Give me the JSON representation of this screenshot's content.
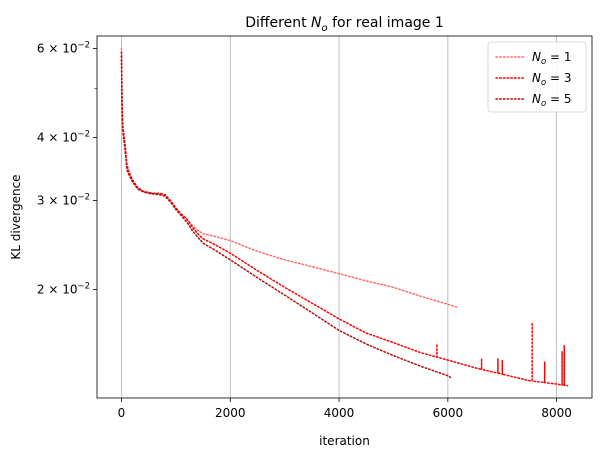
{
  "chart_data": {
    "type": "line",
    "title_prefix": "Different ",
    "title_var": "N",
    "title_sub": "o",
    "title_suffix": " for real image 1",
    "xlabel": "iteration",
    "ylabel": "KL divergence",
    "yscale": "log",
    "xlim": [
      -450,
      8650
    ],
    "ylim": [
      0.0122,
      0.0635
    ],
    "x_ticks": [
      {
        "value": 0,
        "label": "0"
      },
      {
        "value": 2000,
        "label": "2000"
      },
      {
        "value": 4000,
        "label": "4000"
      },
      {
        "value": 6000,
        "label": "6000"
      },
      {
        "value": 8000,
        "label": "8000"
      }
    ],
    "y_ticks": [
      {
        "value": 0.02,
        "mantissa": "2",
        "base": "10",
        "exp": "−2"
      },
      {
        "value": 0.03,
        "mantissa": "3",
        "base": "10",
        "exp": "−2"
      },
      {
        "value": 0.04,
        "mantissa": "4",
        "base": "10",
        "exp": "−2"
      },
      {
        "value": 0.06,
        "mantissa": "6",
        "base": "10",
        "exp": "−2"
      }
    ],
    "y_minor_ticks": [
      0.05
    ],
    "grid": "x-major",
    "legend_position": "top-right",
    "series": [
      {
        "name": "N_o = 1",
        "legend_var": "N",
        "legend_sub": "o",
        "legend_rhs": " = 1",
        "color": "#ff6b6b",
        "points": [
          [
            0,
            0.06
          ],
          [
            10,
            0.048
          ],
          [
            25,
            0.042
          ],
          [
            50,
            0.04
          ],
          [
            80,
            0.038
          ],
          [
            100,
            0.0355
          ],
          [
            150,
            0.034
          ],
          [
            200,
            0.033
          ],
          [
            300,
            0.0318
          ],
          [
            400,
            0.0313
          ],
          [
            500,
            0.0311
          ],
          [
            600,
            0.031
          ],
          [
            700,
            0.031
          ],
          [
            800,
            0.0308
          ],
          [
            900,
            0.03
          ],
          [
            1000,
            0.029
          ],
          [
            1100,
            0.0282
          ],
          [
            1200,
            0.0276
          ],
          [
            1300,
            0.0268
          ],
          [
            1400,
            0.0262
          ],
          [
            1500,
            0.0258
          ],
          [
            1700,
            0.0255
          ],
          [
            2000,
            0.025
          ],
          [
            2500,
            0.0238
          ],
          [
            3000,
            0.0229
          ],
          [
            3500,
            0.0222
          ],
          [
            4000,
            0.0215
          ],
          [
            4500,
            0.0208
          ],
          [
            5000,
            0.0202
          ],
          [
            5500,
            0.0194
          ],
          [
            6000,
            0.0187
          ],
          [
            6200,
            0.0184
          ]
        ],
        "spikes": []
      },
      {
        "name": "N_o = 3",
        "legend_var": "N",
        "legend_sub": "o",
        "legend_rhs": " = 3",
        "color": "#ff0000",
        "points": [
          [
            0,
            0.059
          ],
          [
            10,
            0.047
          ],
          [
            25,
            0.042
          ],
          [
            50,
            0.04
          ],
          [
            80,
            0.037
          ],
          [
            100,
            0.035
          ],
          [
            150,
            0.0338
          ],
          [
            200,
            0.033
          ],
          [
            300,
            0.0318
          ],
          [
            400,
            0.0313
          ],
          [
            500,
            0.0311
          ],
          [
            600,
            0.031
          ],
          [
            700,
            0.031
          ],
          [
            800,
            0.0308
          ],
          [
            900,
            0.03
          ],
          [
            1000,
            0.029
          ],
          [
            1100,
            0.0282
          ],
          [
            1200,
            0.0276
          ],
          [
            1300,
            0.0266
          ],
          [
            1400,
            0.0258
          ],
          [
            1500,
            0.0252
          ],
          [
            1700,
            0.0246
          ],
          [
            2000,
            0.0236
          ],
          [
            2500,
            0.0218
          ],
          [
            3000,
            0.0202
          ],
          [
            3500,
            0.0188
          ],
          [
            4000,
            0.0175
          ],
          [
            4500,
            0.0164
          ],
          [
            5000,
            0.0157
          ],
          [
            5500,
            0.015
          ],
          [
            6000,
            0.0145
          ],
          [
            6500,
            0.014
          ],
          [
            7000,
            0.0136
          ],
          [
            7500,
            0.0132
          ],
          [
            8000,
            0.013
          ],
          [
            8200,
            0.0129
          ]
        ],
        "spikes": [
          [
            5800,
            0.0156
          ],
          [
            6620,
            0.0146
          ],
          [
            6920,
            0.0146
          ],
          [
            7000,
            0.0145
          ],
          [
            7550,
            0.0172
          ],
          [
            7780,
            0.0144
          ],
          [
            8100,
            0.0151
          ],
          [
            8140,
            0.0155
          ]
        ]
      },
      {
        "name": "N_o = 5",
        "legend_var": "N",
        "legend_sub": "o",
        "legend_rhs": " = 5",
        "color": "#b01010",
        "points": [
          [
            0,
            0.058
          ],
          [
            10,
            0.046
          ],
          [
            25,
            0.041
          ],
          [
            50,
            0.039
          ],
          [
            80,
            0.0365
          ],
          [
            100,
            0.0345
          ],
          [
            150,
            0.0335
          ],
          [
            200,
            0.0327
          ],
          [
            300,
            0.0316
          ],
          [
            400,
            0.0312
          ],
          [
            500,
            0.031
          ],
          [
            600,
            0.0309
          ],
          [
            700,
            0.0308
          ],
          [
            800,
            0.0306
          ],
          [
            900,
            0.0298
          ],
          [
            1000,
            0.0288
          ],
          [
            1100,
            0.028
          ],
          [
            1200,
            0.0272
          ],
          [
            1300,
            0.0262
          ],
          [
            1400,
            0.0254
          ],
          [
            1500,
            0.0247
          ],
          [
            1700,
            0.024
          ],
          [
            2000,
            0.0229
          ],
          [
            2500,
            0.0211
          ],
          [
            3000,
            0.0195
          ],
          [
            3500,
            0.018
          ],
          [
            4000,
            0.0166
          ],
          [
            4500,
            0.0156
          ],
          [
            5000,
            0.0148
          ],
          [
            5500,
            0.0141
          ],
          [
            6000,
            0.0135
          ],
          [
            6050,
            0.0134
          ]
        ],
        "spikes": []
      }
    ]
  }
}
